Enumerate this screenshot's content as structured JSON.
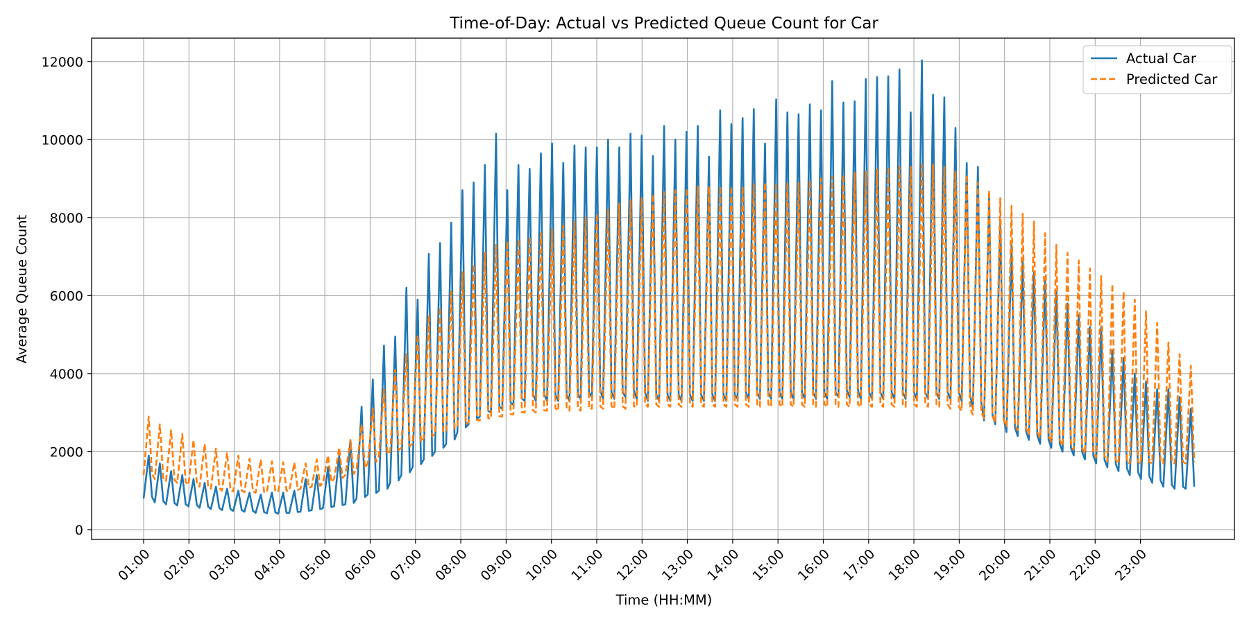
{
  "chart_data": {
    "type": "line",
    "title": "Time-of-Day: Actual vs Predicted Queue Count for Car",
    "xlabel": "Time (HH:MM)",
    "ylabel": "Average Queue Count",
    "ylim": [
      -250,
      12600
    ],
    "yticks": [
      0,
      2000,
      4000,
      6000,
      8000,
      10000,
      12000
    ],
    "xtick_labels": [
      "01:00",
      "02:00",
      "03:00",
      "04:00",
      "05:00",
      "06:00",
      "07:00",
      "08:00",
      "09:00",
      "10:00",
      "11:00",
      "12:00",
      "13:00",
      "14:00",
      "15:00",
      "16:00",
      "17:00",
      "18:00",
      "19:00",
      "20:00",
      "21:00",
      "22:00",
      "23:00"
    ],
    "x_unit_note": "",
    "grid": true,
    "legend_position": "upper right",
    "period_points": 4,
    "series": [
      {
        "name": "Actual Car",
        "color": "#1f77b4",
        "dash": "solid",
        "peaks": [
          1900,
          1700,
          1500,
          1400,
          1300,
          1200,
          1100,
          1050,
          1000,
          950,
          900,
          950,
          950,
          1000,
          1300,
          1400,
          1600,
          1900,
          2300,
          3150,
          3850,
          4720,
          4950,
          6200,
          5900,
          7070,
          7350,
          7870,
          8700,
          8900,
          9350,
          10150,
          8700,
          9350,
          9250,
          9650,
          9900,
          9400,
          9850,
          9800,
          9800,
          10000,
          9800,
          10150,
          10100,
          9580,
          10350,
          10000,
          10200,
          10350,
          9560,
          10750,
          10400,
          10550,
          10780,
          9900,
          11030,
          10700,
          10650,
          10900,
          10750,
          11500,
          10950,
          10980,
          11550,
          11600,
          11620,
          11800,
          10700,
          12030,
          11150,
          11080,
          10300,
          9400,
          9300,
          8600,
          7900,
          7300,
          6900,
          6600,
          6400,
          6100,
          5800,
          5500,
          5200,
          5200,
          4600,
          4400,
          4000,
          3800,
          3600,
          3600,
          3400,
          3100
        ],
        "lows": [
          800,
          700,
          650,
          620,
          600,
          560,
          530,
          500,
          480,
          460,
          430,
          420,
          410,
          430,
          460,
          500,
          550,
          600,
          650,
          800,
          900,
          1000,
          1200,
          1400,
          1600,
          1800,
          2000,
          2200,
          2500,
          2700,
          2900,
          3000,
          3100,
          3200,
          3300,
          3300,
          3300,
          3300,
          3300,
          3350,
          3400,
          3350,
          3350,
          3400,
          3350,
          3300,
          3300,
          3300,
          3300,
          3300,
          3300,
          3300,
          3300,
          3350,
          3350,
          3350,
          3350,
          3350,
          3350,
          3350,
          3350,
          3350,
          3400,
          3400,
          3350,
          3350,
          3350,
          3350,
          3350,
          3350,
          3350,
          3350,
          3350,
          3300,
          3100,
          2800,
          2700,
          2500,
          2400,
          2300,
          2200,
          2100,
          2000,
          1900,
          1800,
          1700,
          1600,
          1500,
          1400,
          1300,
          1200,
          1100,
          1050,
          1050
        ]
      },
      {
        "name": "Predicted Car",
        "color": "#ff7f0e",
        "dash": "dashed",
        "peaks": [
          2900,
          2700,
          2550,
          2450,
          2300,
          2200,
          2080,
          1980,
          1900,
          1820,
          1800,
          1750,
          1730,
          1720,
          1700,
          1800,
          1900,
          2100,
          2300,
          2700,
          3100,
          3600,
          4100,
          4500,
          5000,
          5500,
          5700,
          6100,
          6600,
          6800,
          7100,
          7300,
          7400,
          7450,
          7500,
          7600,
          7700,
          7800,
          7900,
          8000,
          8100,
          8200,
          8350,
          8450,
          8500,
          8600,
          8650,
          8700,
          8750,
          8800,
          8800,
          8800,
          8800,
          8800,
          8850,
          8900,
          8900,
          8900,
          8900,
          8950,
          9000,
          9050,
          9100,
          9150,
          9200,
          9250,
          9300,
          9300,
          9300,
          9350,
          9350,
          9300,
          9200,
          9100,
          8900,
          8700,
          8500,
          8300,
          8100,
          7900,
          7600,
          7300,
          7100,
          6900,
          6700,
          6500,
          6300,
          6100,
          5900,
          5600,
          5300,
          4800,
          4500,
          4200
        ],
        "lows": [
          1400,
          1300,
          1250,
          1200,
          1150,
          1100,
          1050,
          1000,
          980,
          960,
          950,
          960,
          980,
          1000,
          1050,
          1100,
          1200,
          1300,
          1400,
          1550,
          1700,
          1900,
          2000,
          2100,
          2200,
          2350,
          2450,
          2550,
          2650,
          2750,
          2800,
          2850,
          2900,
          2950,
          3000,
          3000,
          3050,
          3050,
          3050,
          3050,
          3100,
          3100,
          3100,
          3100,
          3150,
          3150,
          3150,
          3150,
          3150,
          3150,
          3150,
          3150,
          3150,
          3150,
          3150,
          3150,
          3150,
          3150,
          3150,
          3150,
          3150,
          3150,
          3150,
          3150,
          3150,
          3150,
          3150,
          3150,
          3150,
          3150,
          3150,
          3150,
          3100,
          3050,
          2950,
          2850,
          2750,
          2650,
          2550,
          2450,
          2350,
          2250,
          2150,
          2050,
          1950,
          1850,
          1750,
          1700,
          1700,
          1700,
          1700,
          1700,
          1700,
          1700
        ]
      }
    ]
  }
}
